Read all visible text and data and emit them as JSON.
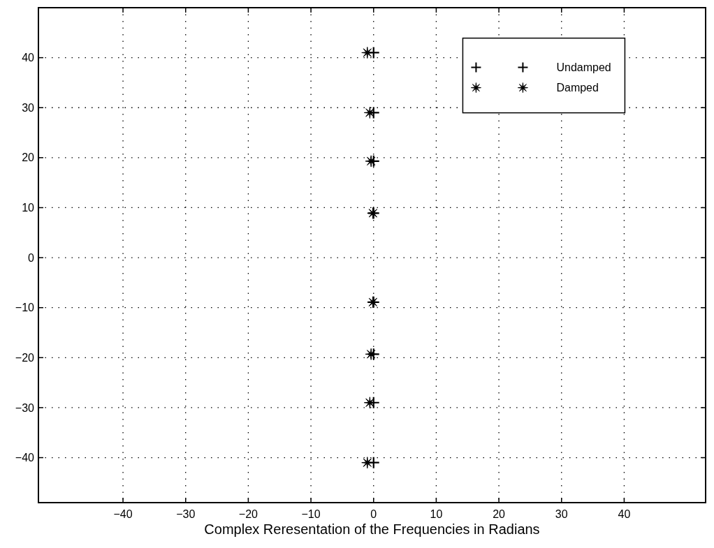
{
  "chart_data": {
    "type": "scatter",
    "xlabel": "Complex Reresentation of the Frequencies in Radians",
    "xlim": [
      -53.5,
      53
    ],
    "ylim": [
      -49,
      50
    ],
    "xticks": [
      -40,
      -30,
      -20,
      -10,
      0,
      10,
      20,
      30,
      40
    ],
    "yticks": [
      -40,
      -30,
      -20,
      -10,
      0,
      10,
      20,
      30,
      40
    ],
    "grid": true,
    "legend": "top right",
    "series": [
      {
        "name": "Undamped",
        "color": "#000000",
        "marker": "cross",
        "x": [
          0,
          0,
          0,
          0,
          0,
          0,
          0,
          0
        ],
        "values": [
          41,
          29,
          19.3,
          8.9,
          -8.9,
          -19.3,
          -29,
          -41
        ]
      },
      {
        "name": "Damped",
        "color": "#000000",
        "marker": "star",
        "x": [
          -1,
          -0.6,
          -0.4,
          -0.1,
          -0.1,
          -0.4,
          -0.6,
          -1
        ],
        "values": [
          41,
          29,
          19.3,
          8.9,
          -8.9,
          -19.3,
          -29,
          -41
        ]
      }
    ]
  }
}
